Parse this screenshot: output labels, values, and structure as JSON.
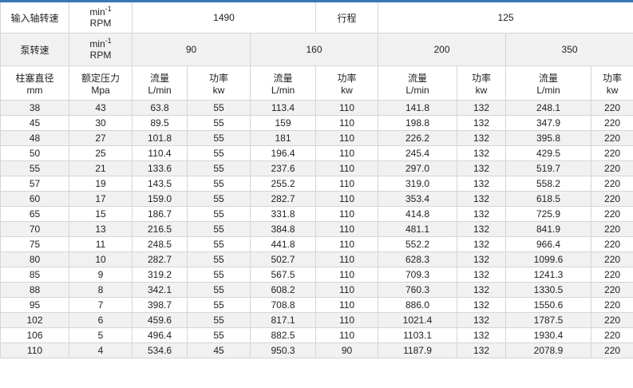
{
  "table": {
    "accent_color": "#3a76b5",
    "stripe_color": "#f1f1f1",
    "header": {
      "input_shaft_speed_label": "输入轴转速",
      "unit_min": "min",
      "unit_sup": "-1",
      "unit_rpm": "RPM",
      "input_shaft_speed_value": "1490",
      "stroke_label": "行程",
      "stroke_value": "125",
      "pump_speed_label": "泵转速",
      "pump_speed_values": [
        "90",
        "160",
        "200",
        "350"
      ],
      "piston_diameter_label": "柱塞直径",
      "piston_diameter_unit": "mm",
      "rated_pressure_label": "额定压力",
      "rated_pressure_unit": "Mpa",
      "flow_label": "流量",
      "flow_unit": "L/min",
      "power_label": "功率",
      "power_unit": "kw"
    },
    "rows": [
      [
        "38",
        "43",
        "63.8",
        "55",
        "113.4",
        "110",
        "141.8",
        "132",
        "248.1",
        "220"
      ],
      [
        "45",
        "30",
        "89.5",
        "55",
        "159",
        "110",
        "198.8",
        "132",
        "347.9",
        "220"
      ],
      [
        "48",
        "27",
        "101.8",
        "55",
        "181",
        "110",
        "226.2",
        "132",
        "395.8",
        "220"
      ],
      [
        "50",
        "25",
        "110.4",
        "55",
        "196.4",
        "110",
        "245.4",
        "132",
        "429.5",
        "220"
      ],
      [
        "55",
        "21",
        "133.6",
        "55",
        "237.6",
        "110",
        "297.0",
        "132",
        "519.7",
        "220"
      ],
      [
        "57",
        "19",
        "143.5",
        "55",
        "255.2",
        "110",
        "319.0",
        "132",
        "558.2",
        "220"
      ],
      [
        "60",
        "17",
        "159.0",
        "55",
        "282.7",
        "110",
        "353.4",
        "132",
        "618.5",
        "220"
      ],
      [
        "65",
        "15",
        "186.7",
        "55",
        "331.8",
        "110",
        "414.8",
        "132",
        "725.9",
        "220"
      ],
      [
        "70",
        "13",
        "216.5",
        "55",
        "384.8",
        "110",
        "481.1",
        "132",
        "841.9",
        "220"
      ],
      [
        "75",
        "11",
        "248.5",
        "55",
        "441.8",
        "110",
        "552.2",
        "132",
        "966.4",
        "220"
      ],
      [
        "80",
        "10",
        "282.7",
        "55",
        "502.7",
        "110",
        "628.3",
        "132",
        "1099.6",
        "220"
      ],
      [
        "85",
        "9",
        "319.2",
        "55",
        "567.5",
        "110",
        "709.3",
        "132",
        "1241.3",
        "220"
      ],
      [
        "88",
        "8",
        "342.1",
        "55",
        "608.2",
        "110",
        "760.3",
        "132",
        "1330.5",
        "220"
      ],
      [
        "95",
        "7",
        "398.7",
        "55",
        "708.8",
        "110",
        "886.0",
        "132",
        "1550.6",
        "220"
      ],
      [
        "102",
        "6",
        "459.6",
        "55",
        "817.1",
        "110",
        "1021.4",
        "132",
        "1787.5",
        "220"
      ],
      [
        "106",
        "5",
        "496.4",
        "55",
        "882.5",
        "110",
        "1103.1",
        "132",
        "1930.4",
        "220"
      ],
      [
        "110",
        "4",
        "534.6",
        "45",
        "950.3",
        "90",
        "1187.9",
        "132",
        "2078.9",
        "220"
      ]
    ]
  }
}
